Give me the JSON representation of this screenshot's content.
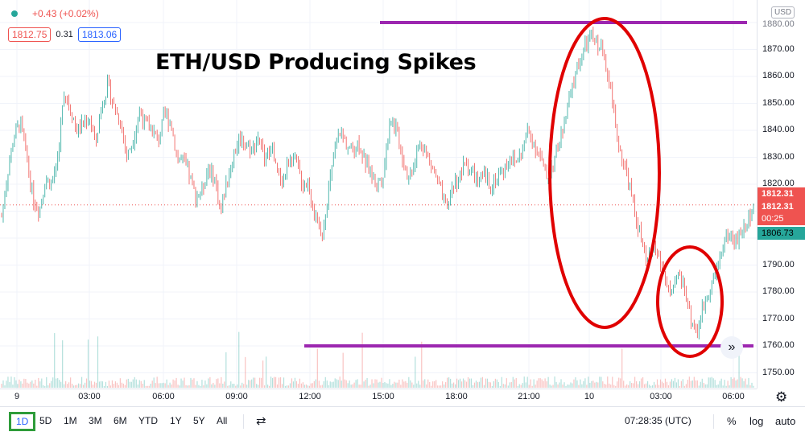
{
  "legend": {
    "change": "+0.43 (+0.02%)",
    "bid": "1812.75",
    "spread": "0.31",
    "ask": "1813.06"
  },
  "annotation_title": "ETH/USD Producing Spikes",
  "price_axis": {
    "currency": "USD",
    "labels": [
      "1880.00",
      "1870.00",
      "1860.00",
      "1850.00",
      "1840.00",
      "1830.00",
      "1820.00",
      "1810.00",
      "1800.00",
      "1790.00",
      "1780.00",
      "1770.00",
      "1760.00",
      "1750.00"
    ],
    "current_price": "1812.31",
    "current_price_2": "1812.31",
    "countdown": "00:25",
    "green_tag": "1806.73"
  },
  "time_axis": {
    "labels": [
      "9",
      "03:00",
      "06:00",
      "09:00",
      "12:00",
      "15:00",
      "18:00",
      "21:00",
      "10",
      "03:00",
      "06:00"
    ]
  },
  "bottom_bar": {
    "ranges": [
      "1D",
      "5D",
      "1M",
      "3M",
      "6M",
      "YTD",
      "1Y",
      "5Y",
      "All"
    ],
    "clock": "07:28:35 (UTC)",
    "percent": "%",
    "log": "log",
    "auto": "auto"
  },
  "colors": {
    "up": "#26a69a",
    "down": "#ef5350",
    "annotation_line": "#9c27b0",
    "annotation_ellipse": "#e00000",
    "price_tag": "#ef5350",
    "green_tag": "#26a69a",
    "active_range": "#2e9c3a"
  },
  "chart_data": {
    "type": "line",
    "title": "ETH/USD Producing Spikes",
    "ylabel": "USD",
    "ylim": [
      1748,
      1882
    ],
    "x_ticks": [
      "9",
      "03:00",
      "06:00",
      "09:00",
      "12:00",
      "15:00",
      "18:00",
      "21:00",
      "10",
      "03:00",
      "06:00"
    ],
    "series": [
      {
        "values": [
          1808,
          1825,
          1838,
          1843,
          1830,
          1815,
          1810,
          1822,
          1820,
          1830,
          1855,
          1848,
          1840,
          1842,
          1845,
          1835,
          1850,
          1857,
          1848,
          1843,
          1830,
          1837,
          1847,
          1842,
          1840,
          1836,
          1846,
          1843,
          1830,
          1828,
          1823,
          1815,
          1818,
          1826,
          1822,
          1810,
          1822,
          1830,
          1838,
          1835,
          1833,
          1838,
          1828,
          1835,
          1823,
          1822,
          1830,
          1828,
          1820,
          1820,
          1808,
          1800,
          1815,
          1830,
          1840,
          1835,
          1832,
          1836,
          1828,
          1824,
          1820,
          1825,
          1845,
          1840,
          1830,
          1822,
          1830,
          1836,
          1830,
          1825,
          1818,
          1810,
          1820,
          1822,
          1828,
          1825,
          1820,
          1823,
          1820,
          1822,
          1825,
          1830,
          1828,
          1832,
          1840,
          1835,
          1830,
          1822,
          1828,
          1835,
          1845,
          1855,
          1865,
          1870,
          1875,
          1872,
          1869,
          1860,
          1840,
          1830,
          1822,
          1810,
          1800,
          1790,
          1798,
          1792,
          1784,
          1778,
          1787,
          1782,
          1770,
          1765,
          1775,
          1782,
          1787,
          1797,
          1802,
          1798,
          1802,
          1806,
          1812
        ]
      }
    ],
    "annotations": {
      "horizontal_levels": [
        1880,
        1760
      ],
      "highlighted_regions": [
        "drop from ~1875 to ~1790",
        "spike down to ~1760"
      ]
    }
  }
}
